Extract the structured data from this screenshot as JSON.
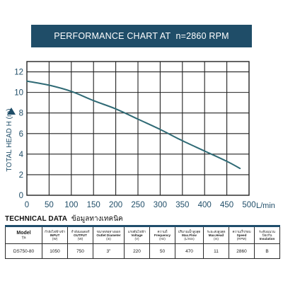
{
  "title": "PERFORMANCE CHART AT  n=2860 RPM",
  "colors": {
    "banner": "#1f4d68",
    "curve": "#2f6a75",
    "frame": "#222222",
    "axis_text": "#1f4d68",
    "table_rule": "#1f4d6b"
  },
  "chart_data": {
    "type": "line",
    "title": "PERFORMANCE CHART AT  n=2860 RPM",
    "xlabel": "L/min",
    "ylabel": "TOTAL HEAD H (m)",
    "xlim": [
      0,
      500
    ],
    "ylim": [
      0,
      13
    ],
    "x_ticks": [
      "0",
      "50",
      "100",
      "150",
      "200",
      "250",
      "300",
      "350",
      "400",
      "450",
      "500"
    ],
    "y_ticks": [
      "0",
      "2",
      "4",
      "6",
      "8",
      "10",
      "12"
    ],
    "grid": true,
    "series": [
      {
        "x": [
          0,
          50,
          100,
          150,
          200,
          250,
          300,
          350,
          400,
          450,
          480
        ],
        "y": [
          11.1,
          10.7,
          10.1,
          9.2,
          8.4,
          7.4,
          6.4,
          5.3,
          4.3,
          3.3,
          2.6
        ]
      }
    ]
  },
  "tech": {
    "heading_en": "TECHNICAL DATA",
    "heading_th": "ข้อมูลทางเทคนิค",
    "columns": [
      {
        "th": "",
        "en": "Model",
        "sub": "รุ่น"
      },
      {
        "th": "กำลังไฟฟ้าเข้า",
        "en": "INPUT",
        "sub": "(W)"
      },
      {
        "th": "กำลังมอเตอร์",
        "en": "OUTPUT",
        "sub": "(W)"
      },
      {
        "th": "ขนาดท่อทางออก",
        "en": "Outlet Diameter",
        "sub": "(in)"
      },
      {
        "th": "แรงดันไฟฟ้า",
        "en": "Voltage",
        "sub": "(V)"
      },
      {
        "th": "ความถี่",
        "en": "Frequency",
        "sub": "(Hz)"
      },
      {
        "th": "ปริมาณน้ำสูงสุด",
        "en": "Max.Flow",
        "sub": "(L/min)"
      },
      {
        "th": "ระยะส่งสูงสุด",
        "en": "Max.Head",
        "sub": "(m)"
      },
      {
        "th": "ความเร็วรอบ",
        "en": "Speed",
        "sub": "(RPM)"
      },
      {
        "th": "ระดับฉนวนป้องกัน",
        "en": "Insulation",
        "sub": ""
      }
    ],
    "row": [
      "DS750-80",
      "1050",
      "750",
      "3\"",
      "220",
      "50",
      "470",
      "11",
      "2860",
      "B"
    ]
  }
}
